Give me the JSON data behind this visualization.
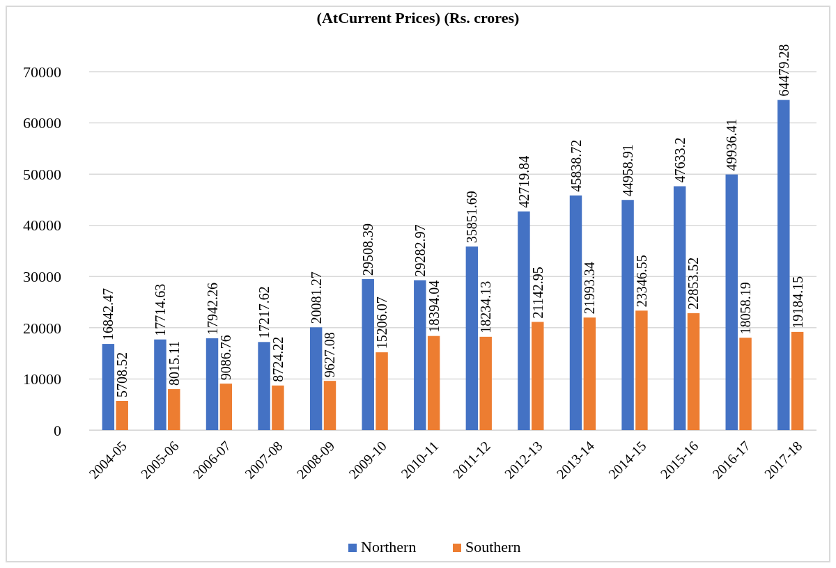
{
  "chart_data": {
    "type": "bar",
    "title": "(AtCurrent Prices) (Rs. crores)",
    "categories": [
      "2004-05",
      "2005-06",
      "2006-07",
      "2007-08",
      "2008-09",
      "2009-10",
      "2010-11",
      "2011-12",
      "2012-13",
      "2013-14",
      "2014-15",
      "2015-16",
      "2016-17",
      "2017-18"
    ],
    "series": [
      {
        "name": "Northern",
        "color": "#4472c4",
        "values": [
          16842.47,
          17714.63,
          17942.26,
          17217.62,
          20081.27,
          29508.39,
          29282.97,
          35851.69,
          42719.84,
          45838.72,
          44958.91,
          47633.2,
          49936.41,
          64479.28
        ]
      },
      {
        "name": "Southern",
        "color": "#ed7d31",
        "values": [
          5708.52,
          8015.11,
          9086.76,
          8724.22,
          9627.08,
          15206.07,
          18394.04,
          18234.13,
          21142.95,
          21993.34,
          23346.55,
          22853.52,
          18058.19,
          19184.15
        ]
      }
    ],
    "ylim": [
      0,
      70000
    ],
    "yticks": [
      0,
      10000,
      20000,
      30000,
      40000,
      50000,
      60000,
      70000
    ],
    "grid": "y",
    "legend": "bottom",
    "data_labels": true
  }
}
